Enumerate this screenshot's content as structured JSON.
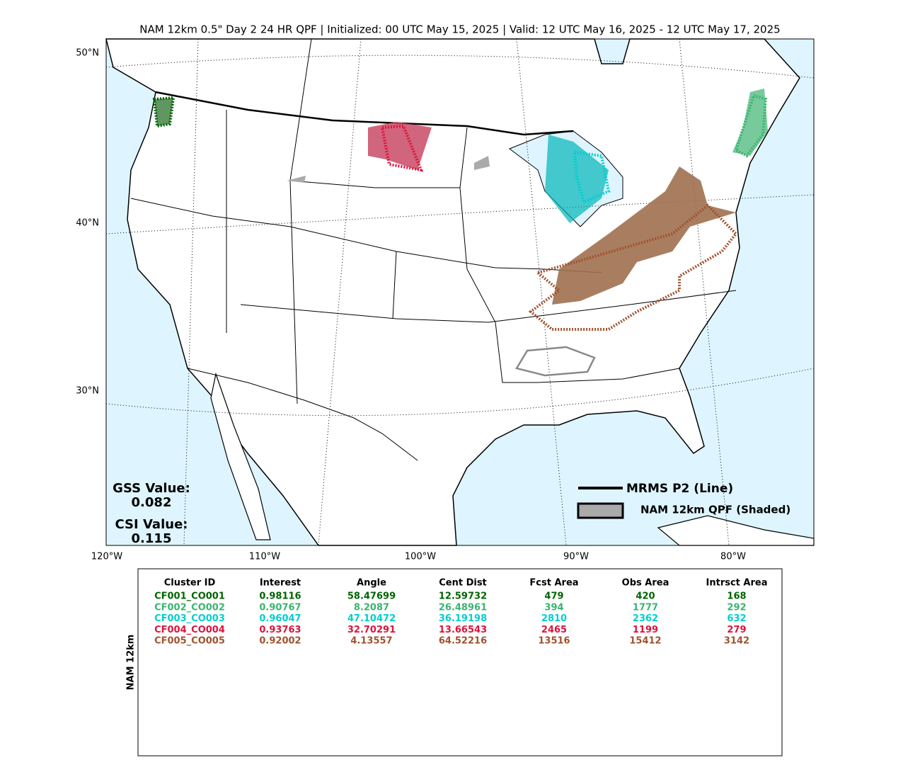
{
  "title": "NAM 12km 0.5\" Day 2 24 HR QPF | Initialized: 00 UTC May 15, 2025 | Valid: 12 UTC May 16, 2025 - 12 UTC May 17, 2025",
  "map": {
    "lat_labels": [
      "50°N",
      "40°N",
      "30°N"
    ],
    "lon_labels": [
      "120°W",
      "110°W",
      "100°W",
      "90°W",
      "80°W"
    ],
    "scores": [
      {
        "label": "GSS Value:",
        "value": 0.082
      },
      {
        "label": "CSI Value:",
        "value": 0.115
      }
    ],
    "legend": [
      "MRMS P2 (Line)",
      "NAM 12km QPF (Shaded)"
    ]
  },
  "table": {
    "side_label": "NAM 12km",
    "columns": [
      "Cluster ID",
      "Interest",
      "Angle",
      "Cent Dist",
      "Fcst Area",
      "Obs Area",
      "Intrsct Area"
    ],
    "row_colors": [
      "#006400",
      "#3cb371",
      "#00ced1",
      "#dc143c",
      "#a0522d"
    ],
    "rows": [
      [
        "CF001_CO001",
        0.98116,
        58.47699,
        12.59732,
        479,
        420,
        168
      ],
      [
        "CF002_CO002",
        0.90767,
        8.2087,
        26.48961,
        394,
        1777,
        292
      ],
      [
        "CF003_CO003",
        0.96047,
        47.10472,
        36.19198,
        2810,
        2362,
        632
      ],
      [
        "CF004_CO004",
        0.93763,
        32.70291,
        13.66543,
        2465,
        1199,
        279
      ],
      [
        "CF005_CO005",
        0.92002,
        4.13557,
        64.52216,
        13516,
        15412,
        3142
      ]
    ]
  }
}
